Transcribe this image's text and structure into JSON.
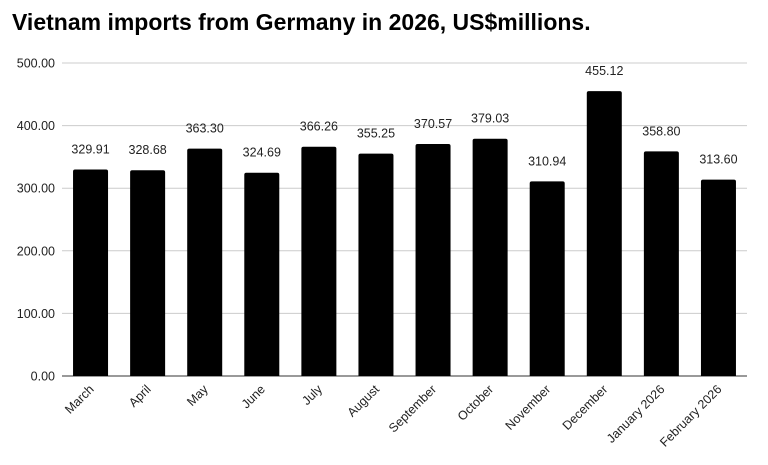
{
  "chart_data": {
    "type": "bar",
    "title": "Vietnam imports from Germany in 2026, US$millions.",
    "xlabel": "",
    "ylabel": "",
    "categories": [
      "March",
      "April",
      "May",
      "June",
      "July",
      "August",
      "September",
      "October",
      "November",
      "December",
      "January 2026",
      "February 2026"
    ],
    "values": [
      329.91,
      328.68,
      363.3,
      324.69,
      366.26,
      355.25,
      370.57,
      379.03,
      310.94,
      455.12,
      358.8,
      313.6
    ],
    "value_labels": [
      "329.91",
      "328.68",
      "363.30",
      "324.69",
      "366.26",
      "355.25",
      "370.57",
      "379.03",
      "310.94",
      "455.12",
      "358.80",
      "313.60"
    ],
    "ylim": [
      0,
      500
    ],
    "yticks": [
      0,
      100,
      200,
      300,
      400,
      500
    ],
    "ytick_labels": [
      "0.00",
      "100.00",
      "200.00",
      "300.00",
      "400.00",
      "500.00"
    ],
    "grid": true,
    "legend": "none",
    "bar_color": "#000000",
    "grid_color": "#cccccc"
  }
}
